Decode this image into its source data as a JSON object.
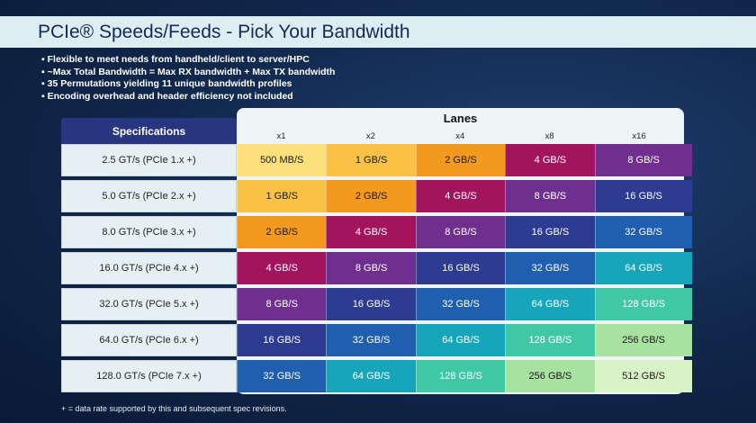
{
  "header": {
    "title": "PCIe® Speeds/Feeds - Pick Your Bandwidth"
  },
  "bullets": [
    "Flexible to meet needs from handheld/client to server/HPC",
    "~Max Total Bandwidth = Max RX bandwidth + Max TX bandwidth",
    "35 Permutations yielding 11 unique bandwidth profiles",
    "Encoding overhead and header efficiency not included"
  ],
  "table": {
    "spec_header": "Specifications",
    "lanes_header": "Lanes",
    "lanes": [
      "x1",
      "x2",
      "x4",
      "x8",
      "x16"
    ],
    "rows": [
      {
        "spec": "2.5 GT/s (PCIe 1.x +)",
        "cells": [
          "500 MB/S",
          "1 GB/S",
          "2 GB/S",
          "4 GB/S",
          "8 GB/S"
        ]
      },
      {
        "spec": "5.0 GT/s (PCIe 2.x +)",
        "cells": [
          "1 GB/S",
          "2 GB/S",
          "4 GB/S",
          "8 GB/S",
          "16 GB/S"
        ]
      },
      {
        "spec": "8.0 GT/s (PCIe 3.x +)",
        "cells": [
          "2 GB/S",
          "4 GB/S",
          "8 GB/S",
          "16 GB/S",
          "32 GB/S"
        ]
      },
      {
        "spec": "16.0 GT/s (PCIe 4.x +)",
        "cells": [
          "4 GB/S",
          "8 GB/S",
          "16 GB/S",
          "32 GB/S",
          "64 GB/S"
        ]
      },
      {
        "spec": "32.0 GT/s (PCIe 5.x +)",
        "cells": [
          "8 GB/S",
          "16 GB/S",
          "32 GB/S",
          "64 GB/S",
          "128 GB/S"
        ]
      },
      {
        "spec": "64.0 GT/s (PCIe 6.x +)",
        "cells": [
          "16 GB/S",
          "32 GB/S",
          "64 GB/S",
          "128 GB/S",
          "256 GB/S"
        ]
      },
      {
        "spec": "128.0 GT/s (PCIe 7.x +)",
        "cells": [
          "32 GB/S",
          "64 GB/S",
          "128 GB/S",
          "256 GB/S",
          "512 GB/S"
        ]
      }
    ]
  },
  "footnote": "+ = data rate supported by this and subsequent spec revisions."
}
